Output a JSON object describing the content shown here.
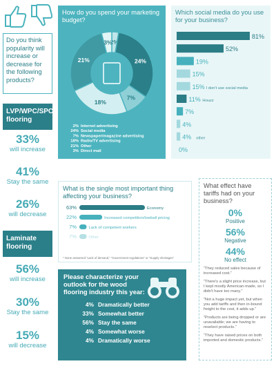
{
  "left_panel": {
    "question": "Do you think popularity will increase or decrease for the following products?",
    "groups": [
      {
        "title": "LVP/WPC/SPC flooring",
        "stats": [
          {
            "value": "33%",
            "label": "will increase"
          },
          {
            "value": "41%",
            "label": "Stay the same"
          },
          {
            "value": "26%",
            "label": "will decrease"
          }
        ]
      },
      {
        "title": "Laminate flooring",
        "stats": [
          {
            "value": "56%",
            "label": "will increase"
          },
          {
            "value": "30%",
            "label": "Stay the same"
          },
          {
            "value": "15%",
            "label": "will decrease"
          }
        ]
      }
    ]
  },
  "chart_data": [
    {
      "type": "pie",
      "title": "How do you spend your marketing budget?",
      "categories": [
        "Internet advertising",
        "Social media",
        "Newspaper/magazine advertising",
        "Radio/TV advertising",
        "Other",
        "Direct mail"
      ],
      "values": [
        2,
        24,
        7,
        18,
        21,
        3
      ],
      "value_labels": [
        "2%",
        "24%",
        "7%",
        "18%",
        "21%",
        "3%"
      ],
      "colors": [
        "#bfe6ea",
        "#2a7f88",
        "#8fd0d7",
        "#d4eff1",
        "#3f9aa4",
        "#e3f5f6"
      ]
    },
    {
      "type": "hbar",
      "title": "Which social media do you use for your business?",
      "categories": [
        null,
        null,
        null,
        null,
        "I don't use social media",
        "Houzz",
        null,
        null,
        "other",
        null
      ],
      "values": [
        81,
        52,
        19,
        15,
        15,
        11,
        7,
        4,
        4,
        0
      ],
      "value_labels": [
        "81%",
        "52%",
        "19%",
        "15%",
        "15%",
        "11%",
        "7%",
        "4%",
        "4%",
        "0%"
      ],
      "colors": [
        "#2b7d86",
        "#2b7d86",
        "#46b1bc",
        "#a3d8de",
        "#a3d8de",
        "#2b7d86",
        "#46b1bc",
        "#a3d8de",
        "#a3d8de",
        "#a3d8de"
      ]
    },
    {
      "type": "hbar",
      "title": "What is the single most important thing affecting your business?",
      "categories": [
        "Economy",
        "Increased competition/lowball pricing",
        "Lack of competent workers",
        "Other"
      ],
      "values": [
        63,
        22,
        7,
        7
      ],
      "value_labels": [
        "63%",
        "22%",
        "7%",
        "7%"
      ],
      "colors": [
        "#2b7d86",
        "#46b1bc",
        "#46b1bc",
        "#b5e0e4"
      ],
      "note": "* None answered “Lack of demand,” “Government regulations” or “Supply shortages”"
    }
  ],
  "tariffs": {
    "title": "What effect have tariffs had on your business?",
    "stats": [
      {
        "value": "0%",
        "label": "Positive"
      },
      {
        "value": "56%",
        "label": "Negative"
      },
      {
        "value": "44%",
        "label": "No effect"
      }
    ],
    "quotes": [
      "“They reduced sales because of increased cost.”",
      "“There's a slight price increase, but I kept mostly American-made, so I didn't have too many.”",
      "“Not a huge impact yet, but when you add tariffs and then in-bound freight to the cost, it adds up.”",
      "“Products are being dropped or are unavailable; we are having to reselect products.”",
      "“They have raised prices on both imported and domestic products.”"
    ]
  },
  "outlook": {
    "title": "Please characterize your outlook for the wood flooring industry this year:",
    "rows": [
      {
        "value": "4%",
        "label": "Dramatically better"
      },
      {
        "value": "33%",
        "label": "Somewhat better"
      },
      {
        "value": "56%",
        "label": "Stay the same"
      },
      {
        "value": "4%",
        "label": "Somewhat worse"
      },
      {
        "value": "4%",
        "label": "Dramatically worse"
      }
    ]
  }
}
